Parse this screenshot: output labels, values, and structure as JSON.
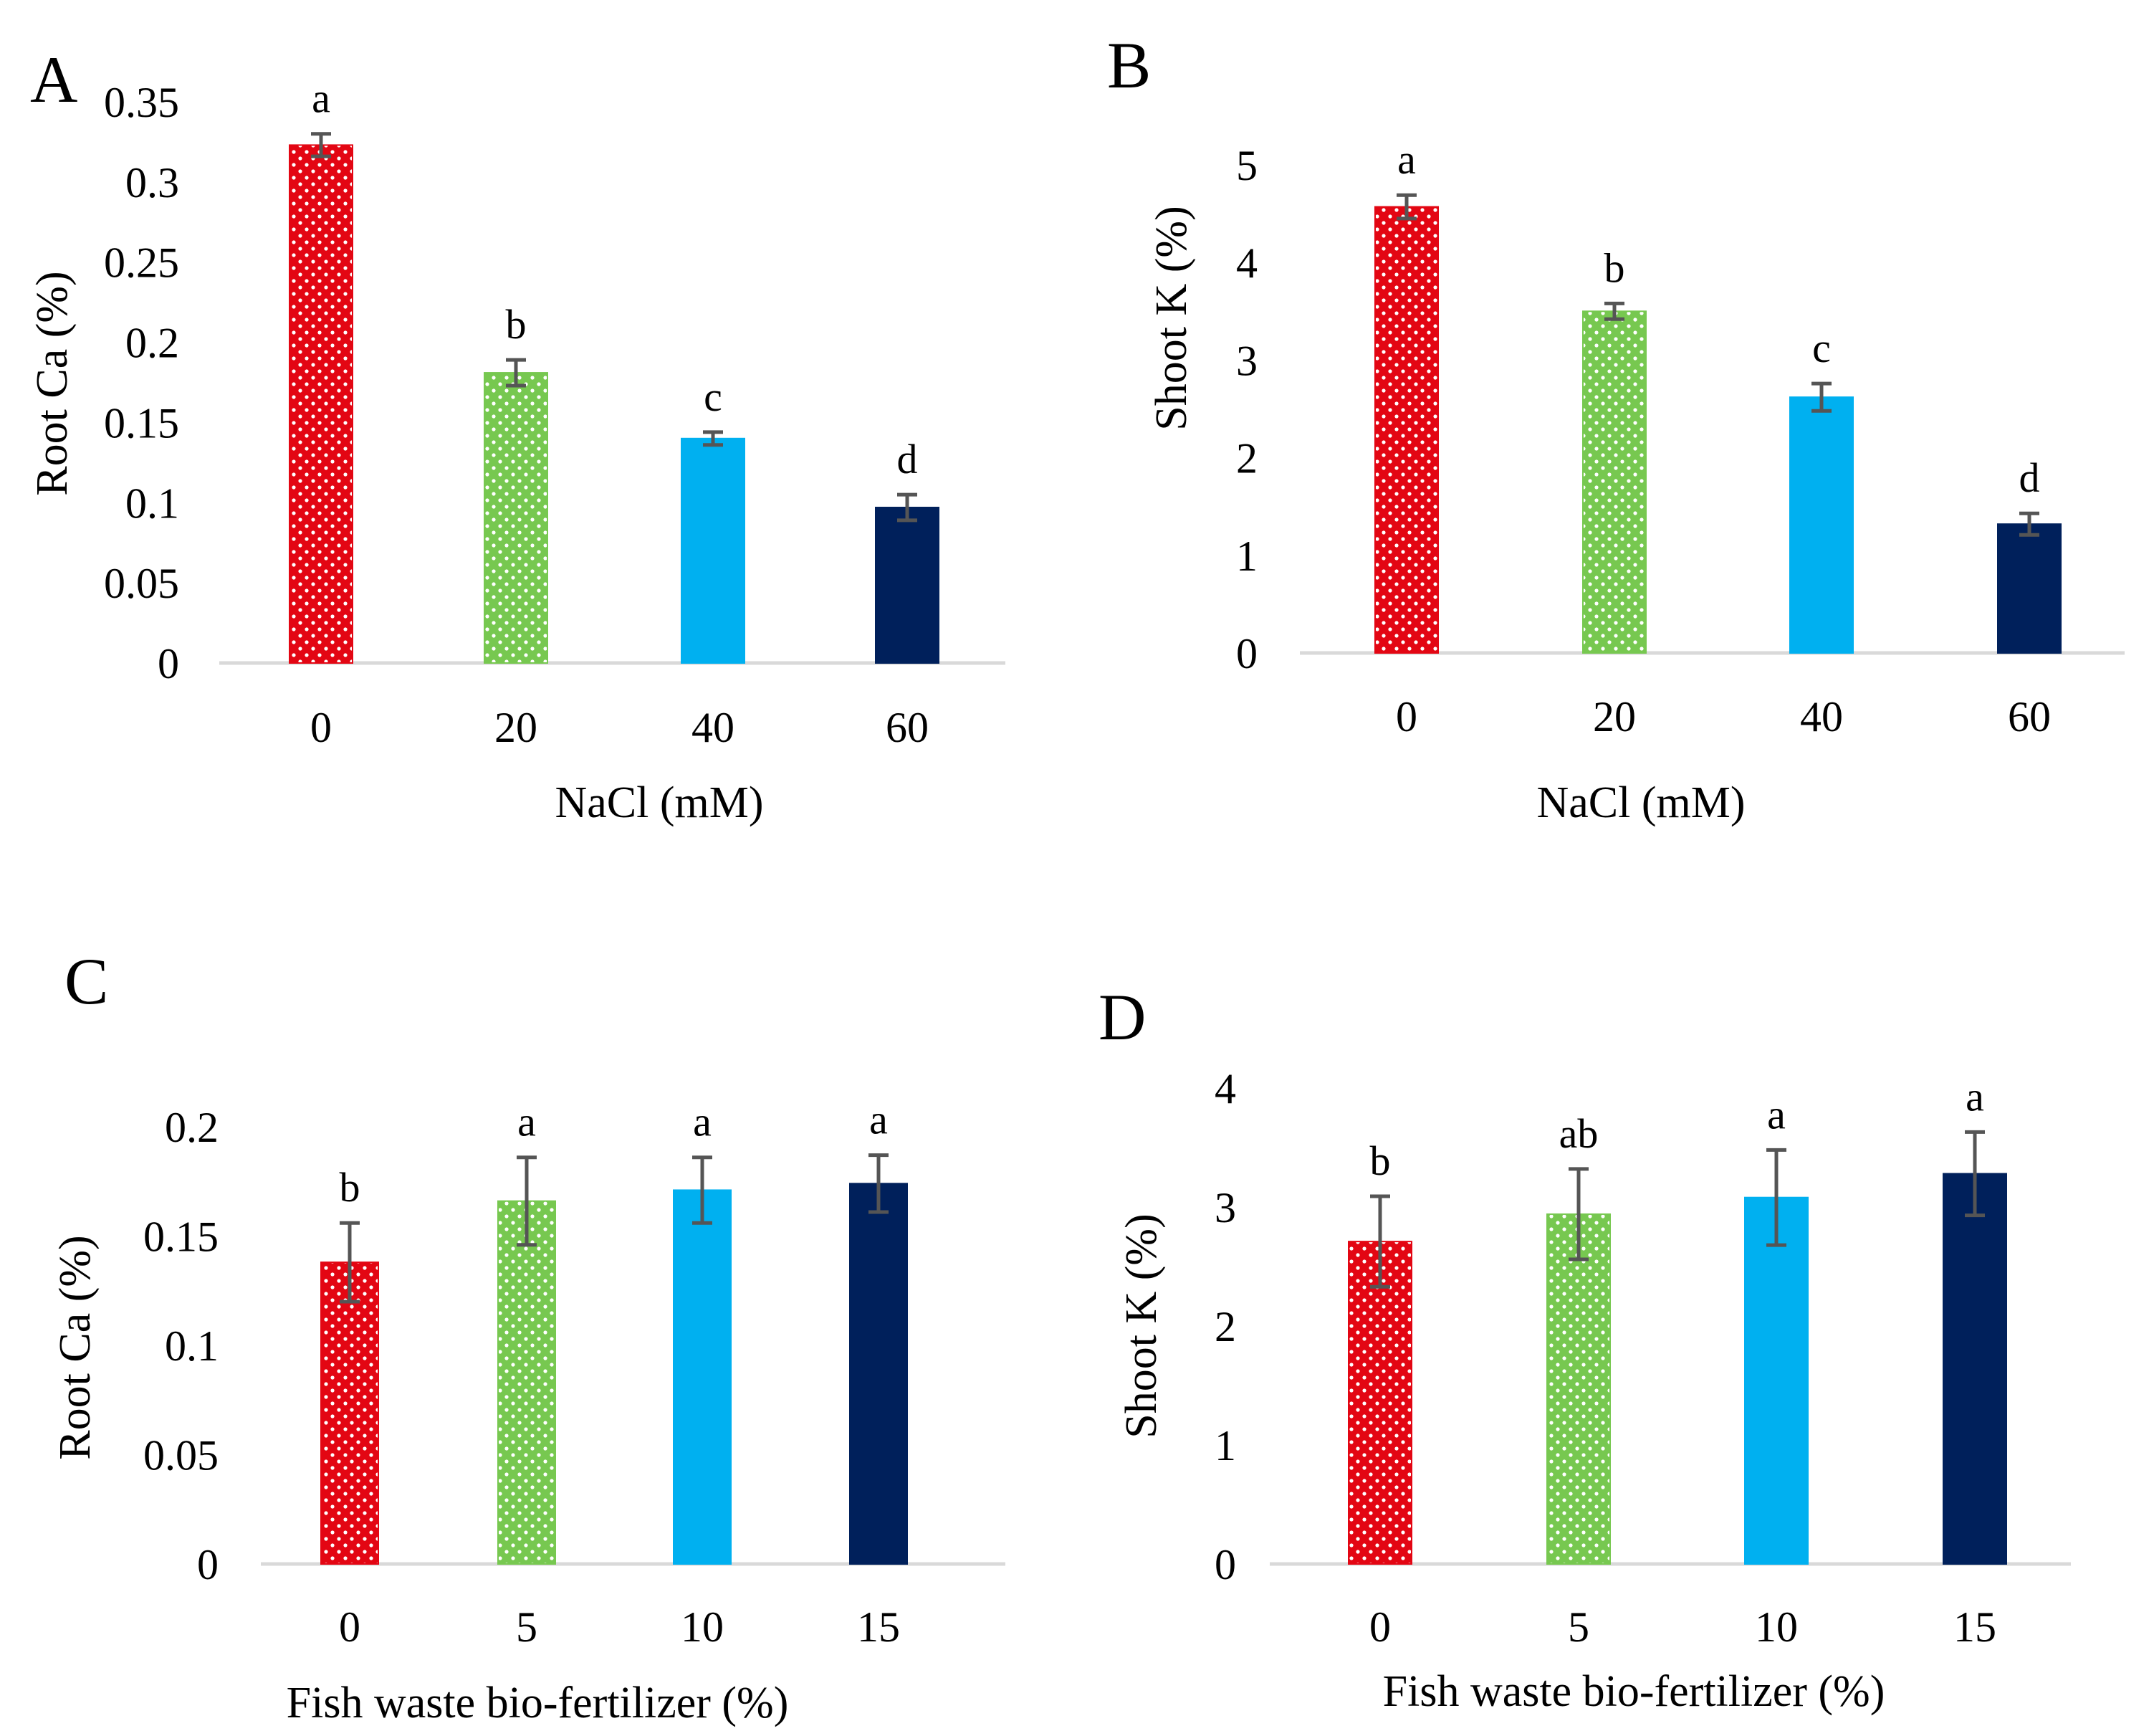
{
  "figure": {
    "colors": {
      "red": "#e30613",
      "green": "#77c850",
      "light_blue": "#00b0f0",
      "navy": "#00205b",
      "error_bar": "#555555",
      "axis": "#d9d9d9"
    }
  },
  "chart_data": [
    {
      "id": "A",
      "panel_label": "A",
      "type": "bar",
      "categories": [
        "0",
        "20",
        "40",
        "60"
      ],
      "values": [
        0.323,
        0.181,
        0.14,
        0.097
      ],
      "errors": [
        0.007,
        0.008,
        0.004,
        0.008
      ],
      "significance": [
        "a",
        "b",
        "c",
        "d"
      ],
      "patterns": [
        "dots",
        "dots",
        "solid",
        "solid"
      ],
      "bar_colors": [
        "#e30613",
        "#77c850",
        "#00b0f0",
        "#00205b"
      ],
      "xlabel": "NaCl (mM)",
      "ylabel": "Root Ca (%)",
      "ylim": [
        0,
        0.35
      ],
      "yticks": [
        0,
        0.05,
        0.1,
        0.15,
        0.2,
        0.25,
        0.3,
        0.35
      ],
      "ytick_labels": [
        "0",
        "0.05",
        "0.1",
        "0.15",
        "0.2",
        "0.25",
        "0.3",
        "0.35"
      ],
      "grid": false
    },
    {
      "id": "B",
      "panel_label": "B",
      "type": "bar",
      "categories": [
        "0",
        "20",
        "40",
        "60"
      ],
      "values": [
        4.57,
        3.5,
        2.62,
        1.32
      ],
      "errors": [
        0.12,
        0.08,
        0.14,
        0.11
      ],
      "significance": [
        "a",
        "b",
        "c",
        "d"
      ],
      "patterns": [
        "dots",
        "dots",
        "solid",
        "solid"
      ],
      "bar_colors": [
        "#e30613",
        "#77c850",
        "#00b0f0",
        "#00205b"
      ],
      "xlabel": "NaCl (mM)",
      "ylabel": "Shoot K (%)",
      "ylim": [
        0,
        5
      ],
      "yticks": [
        0,
        1,
        2,
        3,
        4,
        5
      ],
      "ytick_labels": [
        "0",
        "1",
        "2",
        "3",
        "4",
        "5"
      ],
      "grid": false
    },
    {
      "id": "C",
      "panel_label": "C",
      "type": "bar",
      "categories": [
        "0",
        "5",
        "10",
        "15"
      ],
      "values": [
        0.138,
        0.166,
        0.171,
        0.174
      ],
      "errors": [
        0.018,
        0.02,
        0.015,
        0.013
      ],
      "significance": [
        "b",
        "a",
        "a",
        "a"
      ],
      "patterns": [
        "dots",
        "dots",
        "solid",
        "solid"
      ],
      "bar_colors": [
        "#e30613",
        "#77c850",
        "#00b0f0",
        "#00205b"
      ],
      "xlabel": "Fish waste bio-fertilizer (%)",
      "ylabel": "Root Ca (%)",
      "ylim": [
        0,
        0.2
      ],
      "yticks": [
        0,
        0.05,
        0.1,
        0.15,
        0.2
      ],
      "ytick_labels": [
        "0",
        "0.05",
        "0.1",
        "0.15",
        "0.2"
      ],
      "grid": false
    },
    {
      "id": "D",
      "panel_label": "D",
      "type": "bar",
      "categories": [
        "0",
        "5",
        "10",
        "15"
      ],
      "values": [
        2.71,
        2.94,
        3.08,
        3.28
      ],
      "errors": [
        0.38,
        0.38,
        0.4,
        0.35
      ],
      "significance": [
        "b",
        "ab",
        "a",
        "a"
      ],
      "patterns": [
        "dots",
        "dots",
        "solid",
        "solid"
      ],
      "bar_colors": [
        "#e30613",
        "#77c850",
        "#00b0f0",
        "#00205b"
      ],
      "xlabel": "Fish waste bio-fertilizer (%)",
      "ylabel": "Shoot  K (%)",
      "ylim": [
        0,
        4
      ],
      "yticks": [
        0,
        1,
        2,
        3,
        4
      ],
      "ytick_labels": [
        "0",
        "1",
        "2",
        "3",
        "4"
      ],
      "grid": false
    }
  ]
}
